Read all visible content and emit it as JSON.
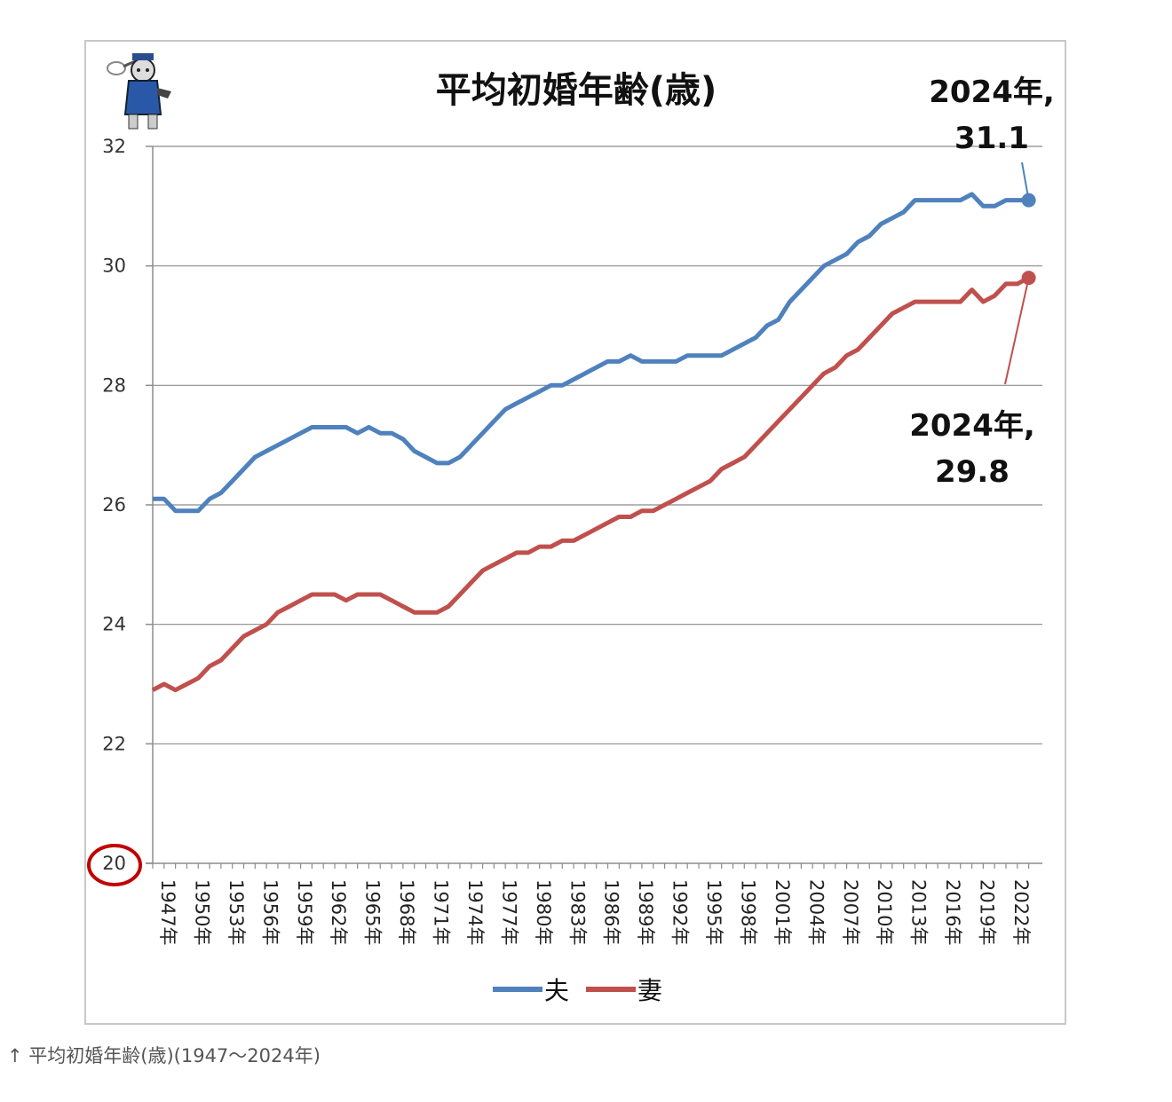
{
  "caption": "↑ 平均初婚年齢(歳)(1947〜2024年)",
  "chart_data": {
    "type": "line",
    "title": "平均初婚年齢(歳)",
    "xlabel": "",
    "ylabel": "",
    "ylim": [
      20,
      32
    ],
    "yticks": [
      20,
      22,
      24,
      26,
      28,
      30,
      32
    ],
    "xticks": [
      "1947年",
      "1950年",
      "1953年",
      "1956年",
      "1959年",
      "1962年",
      "1965年",
      "1968年",
      "1971年",
      "1974年",
      "1977年",
      "1980年",
      "1983年",
      "1986年",
      "1989年",
      "1992年",
      "1995年",
      "1998年",
      "2001年",
      "2004年",
      "2007年",
      "2010年",
      "2013年",
      "2016年",
      "2019年",
      "2022年"
    ],
    "grid": true,
    "legend": "bottom",
    "x": [
      1947,
      1948,
      1949,
      1950,
      1951,
      1952,
      1953,
      1954,
      1955,
      1956,
      1957,
      1958,
      1959,
      1960,
      1961,
      1962,
      1963,
      1964,
      1965,
      1966,
      1967,
      1968,
      1969,
      1970,
      1971,
      1972,
      1973,
      1974,
      1975,
      1976,
      1977,
      1978,
      1979,
      1980,
      1981,
      1982,
      1983,
      1984,
      1985,
      1986,
      1987,
      1988,
      1989,
      1990,
      1991,
      1992,
      1993,
      1994,
      1995,
      1996,
      1997,
      1998,
      1999,
      2000,
      2001,
      2002,
      2003,
      2004,
      2005,
      2006,
      2007,
      2008,
      2009,
      2010,
      2011,
      2012,
      2013,
      2014,
      2015,
      2016,
      2017,
      2018,
      2019,
      2020,
      2021,
      2022,
      2023,
      2024
    ],
    "series": [
      {
        "name": "夫",
        "color": "#4f81bd",
        "values": [
          26.1,
          26.1,
          25.9,
          25.9,
          25.9,
          26.1,
          26.2,
          26.4,
          26.6,
          26.8,
          26.9,
          27.0,
          27.1,
          27.2,
          27.3,
          27.3,
          27.3,
          27.3,
          27.2,
          27.3,
          27.2,
          27.2,
          27.1,
          26.9,
          26.8,
          26.7,
          26.7,
          26.8,
          27.0,
          27.2,
          27.4,
          27.6,
          27.7,
          27.8,
          27.9,
          28.0,
          28.0,
          28.1,
          28.2,
          28.3,
          28.4,
          28.4,
          28.5,
          28.4,
          28.4,
          28.4,
          28.4,
          28.5,
          28.5,
          28.5,
          28.5,
          28.6,
          28.7,
          28.8,
          29.0,
          29.1,
          29.4,
          29.6,
          29.8,
          30.0,
          30.1,
          30.2,
          30.4,
          30.5,
          30.7,
          30.8,
          30.9,
          31.1,
          31.1,
          31.1,
          31.1,
          31.1,
          31.2,
          31.0,
          31.0,
          31.1,
          31.1,
          31.1
        ]
      },
      {
        "name": "妻",
        "color": "#c0504d",
        "values": [
          22.9,
          23.0,
          22.9,
          23.0,
          23.1,
          23.3,
          23.4,
          23.6,
          23.8,
          23.9,
          24.0,
          24.2,
          24.3,
          24.4,
          24.5,
          24.5,
          24.5,
          24.4,
          24.5,
          24.5,
          24.5,
          24.4,
          24.3,
          24.2,
          24.2,
          24.2,
          24.3,
          24.5,
          24.7,
          24.9,
          25.0,
          25.1,
          25.2,
          25.2,
          25.3,
          25.3,
          25.4,
          25.4,
          25.5,
          25.6,
          25.7,
          25.8,
          25.8,
          25.9,
          25.9,
          26.0,
          26.1,
          26.2,
          26.3,
          26.4,
          26.6,
          26.7,
          26.8,
          27.0,
          27.2,
          27.4,
          27.6,
          27.8,
          28.0,
          28.2,
          28.3,
          28.5,
          28.6,
          28.8,
          29.0,
          29.2,
          29.3,
          29.4,
          29.4,
          29.4,
          29.4,
          29.4,
          29.6,
          29.4,
          29.5,
          29.7,
          29.7,
          29.8
        ]
      }
    ],
    "annotations": [
      {
        "series": 0,
        "line1": "2024年,",
        "line2": "31.1"
      },
      {
        "series": 1,
        "line1": "2024年,",
        "line2": "29.8"
      }
    ]
  }
}
